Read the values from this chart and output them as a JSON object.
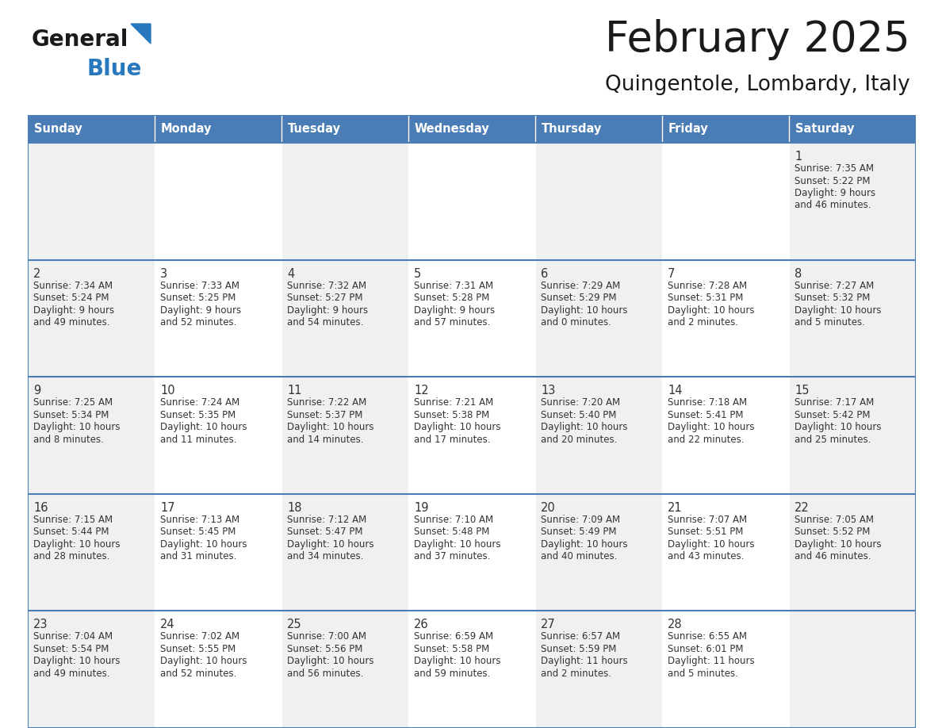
{
  "title": "February 2025",
  "subtitle": "Quingentole, Lombardy, Italy",
  "days_of_week": [
    "Sunday",
    "Monday",
    "Tuesday",
    "Wednesday",
    "Thursday",
    "Friday",
    "Saturday"
  ],
  "header_bg": "#4a7db5",
  "header_text": "#ffffff",
  "cell_bg_light": "#f0f0f0",
  "cell_bg_white": "#ffffff",
  "border_color": "#4a7db5",
  "text_color": "#333333",
  "title_color": "#1a1a1a",
  "logo_general_color": "#1a1a1a",
  "logo_blue_color": "#2878be",
  "logo_triangle_color": "#2878be",
  "calendar_data": [
    [
      null,
      null,
      null,
      null,
      null,
      null,
      {
        "day": 1,
        "sunrise": "7:35 AM",
        "sunset": "5:22 PM",
        "daylight": "9 hours and 46 minutes."
      }
    ],
    [
      {
        "day": 2,
        "sunrise": "7:34 AM",
        "sunset": "5:24 PM",
        "daylight": "9 hours and 49 minutes."
      },
      {
        "day": 3,
        "sunrise": "7:33 AM",
        "sunset": "5:25 PM",
        "daylight": "9 hours and 52 minutes."
      },
      {
        "day": 4,
        "sunrise": "7:32 AM",
        "sunset": "5:27 PM",
        "daylight": "9 hours and 54 minutes."
      },
      {
        "day": 5,
        "sunrise": "7:31 AM",
        "sunset": "5:28 PM",
        "daylight": "9 hours and 57 minutes."
      },
      {
        "day": 6,
        "sunrise": "7:29 AM",
        "sunset": "5:29 PM",
        "daylight": "10 hours and 0 minutes."
      },
      {
        "day": 7,
        "sunrise": "7:28 AM",
        "sunset": "5:31 PM",
        "daylight": "10 hours and 2 minutes."
      },
      {
        "day": 8,
        "sunrise": "7:27 AM",
        "sunset": "5:32 PM",
        "daylight": "10 hours and 5 minutes."
      }
    ],
    [
      {
        "day": 9,
        "sunrise": "7:25 AM",
        "sunset": "5:34 PM",
        "daylight": "10 hours and 8 minutes."
      },
      {
        "day": 10,
        "sunrise": "7:24 AM",
        "sunset": "5:35 PM",
        "daylight": "10 hours and 11 minutes."
      },
      {
        "day": 11,
        "sunrise": "7:22 AM",
        "sunset": "5:37 PM",
        "daylight": "10 hours and 14 minutes."
      },
      {
        "day": 12,
        "sunrise": "7:21 AM",
        "sunset": "5:38 PM",
        "daylight": "10 hours and 17 minutes."
      },
      {
        "day": 13,
        "sunrise": "7:20 AM",
        "sunset": "5:40 PM",
        "daylight": "10 hours and 20 minutes."
      },
      {
        "day": 14,
        "sunrise": "7:18 AM",
        "sunset": "5:41 PM",
        "daylight": "10 hours and 22 minutes."
      },
      {
        "day": 15,
        "sunrise": "7:17 AM",
        "sunset": "5:42 PM",
        "daylight": "10 hours and 25 minutes."
      }
    ],
    [
      {
        "day": 16,
        "sunrise": "7:15 AM",
        "sunset": "5:44 PM",
        "daylight": "10 hours and 28 minutes."
      },
      {
        "day": 17,
        "sunrise": "7:13 AM",
        "sunset": "5:45 PM",
        "daylight": "10 hours and 31 minutes."
      },
      {
        "day": 18,
        "sunrise": "7:12 AM",
        "sunset": "5:47 PM",
        "daylight": "10 hours and 34 minutes."
      },
      {
        "day": 19,
        "sunrise": "7:10 AM",
        "sunset": "5:48 PM",
        "daylight": "10 hours and 37 minutes."
      },
      {
        "day": 20,
        "sunrise": "7:09 AM",
        "sunset": "5:49 PM",
        "daylight": "10 hours and 40 minutes."
      },
      {
        "day": 21,
        "sunrise": "7:07 AM",
        "sunset": "5:51 PM",
        "daylight": "10 hours and 43 minutes."
      },
      {
        "day": 22,
        "sunrise": "7:05 AM",
        "sunset": "5:52 PM",
        "daylight": "10 hours and 46 minutes."
      }
    ],
    [
      {
        "day": 23,
        "sunrise": "7:04 AM",
        "sunset": "5:54 PM",
        "daylight": "10 hours and 49 minutes."
      },
      {
        "day": 24,
        "sunrise": "7:02 AM",
        "sunset": "5:55 PM",
        "daylight": "10 hours and 52 minutes."
      },
      {
        "day": 25,
        "sunrise": "7:00 AM",
        "sunset": "5:56 PM",
        "daylight": "10 hours and 56 minutes."
      },
      {
        "day": 26,
        "sunrise": "6:59 AM",
        "sunset": "5:58 PM",
        "daylight": "10 hours and 59 minutes."
      },
      {
        "day": 27,
        "sunrise": "6:57 AM",
        "sunset": "5:59 PM",
        "daylight": "11 hours and 2 minutes."
      },
      {
        "day": 28,
        "sunrise": "6:55 AM",
        "sunset": "6:01 PM",
        "daylight": "11 hours and 5 minutes."
      },
      null
    ]
  ]
}
